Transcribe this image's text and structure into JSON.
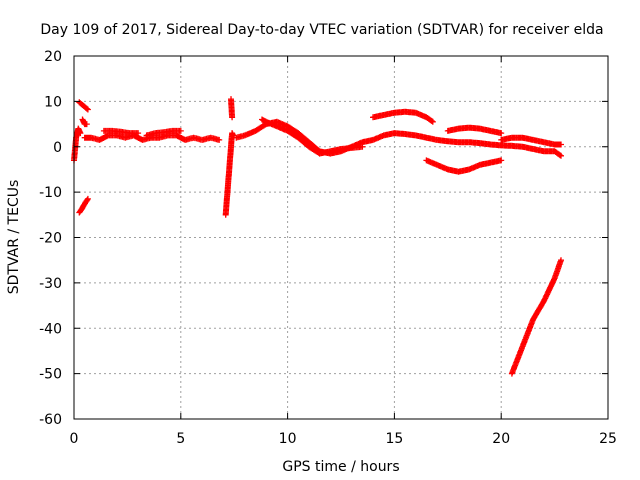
{
  "chart_data": {
    "type": "scatter",
    "title": "Day 109 of 2017, Sidereal Day-to-day VTEC variation (SDTVAR) for receiver elda",
    "xlabel": "GPS time / hours",
    "ylabel": "SDTVAR / TECUs",
    "xlim": [
      0,
      25
    ],
    "ylim": [
      -60,
      20
    ],
    "xticks": [
      0,
      5,
      10,
      15,
      20,
      25
    ],
    "yticks": [
      -60,
      -50,
      -40,
      -30,
      -20,
      -10,
      0,
      10,
      20
    ],
    "grid": true,
    "marker": "+",
    "series": [
      {
        "name": "elda",
        "color": "#ff0000",
        "segments": [
          {
            "x": [
              0.0,
              0.1,
              0.2,
              0.3
            ],
            "y": [
              -3,
              2,
              4,
              3
            ]
          },
          {
            "x": [
              0.25,
              0.35,
              0.45,
              0.55,
              0.65
            ],
            "y": [
              -14.5,
              -13.8,
              -13,
              -12.2,
              -11.5
            ]
          },
          {
            "x": [
              0.25,
              0.35,
              0.45,
              0.55,
              0.65
            ],
            "y": [
              9.8,
              9.4,
              9,
              8.6,
              8.2
            ]
          },
          {
            "x": [
              0.4,
              0.5,
              0.6
            ],
            "y": [
              6,
              5,
              5
            ]
          },
          {
            "x": [
              0.5,
              0.8,
              1.2,
              1.6,
              2.0,
              2.4,
              2.8,
              3.2,
              3.6,
              4.0,
              4.4,
              4.8,
              5.2,
              5.6,
              6.0,
              6.4,
              6.8
            ],
            "y": [
              2,
              2,
              1.5,
              2.5,
              2.5,
              2,
              2.5,
              1.5,
              2,
              2,
              2.5,
              2.5,
              1.5,
              2,
              1.5,
              2,
              1.5
            ]
          },
          {
            "x": [
              1.4,
              1.8,
              2.2,
              2.6,
              3.0
            ],
            "y": [
              3.5,
              3.5,
              3.3,
              3,
              3
            ]
          },
          {
            "x": [
              3.4,
              3.8,
              4.2,
              4.6,
              5.0
            ],
            "y": [
              2.5,
              3,
              3.2,
              3.5,
              3.5
            ]
          },
          {
            "x": [
              7.1,
              7.15,
              7.2,
              7.25,
              7.3,
              7.35,
              7.4,
              7.45
            ],
            "y": [
              -15,
              -12,
              -9,
              -6,
              -3,
              0,
              3,
              2.5
            ]
          },
          {
            "x": [
              7.35,
              7.4
            ],
            "y": [
              10.5,
              6.5
            ]
          },
          {
            "x": [
              7.6,
              8.0,
              8.5,
              9.0,
              9.5,
              10.0,
              10.5,
              11.0,
              11.5,
              12.0,
              12.5,
              13.0,
              13.5,
              14.0,
              14.5,
              15.0,
              15.5,
              16.0,
              16.5,
              17.0,
              17.5,
              18.0,
              18.5,
              19.0,
              19.5,
              20.0,
              20.5,
              21.0,
              21.5,
              22.0,
              22.5,
              22.8
            ],
            "y": [
              2,
              2.5,
              3.5,
              5,
              5.5,
              4.5,
              3,
              1,
              -1,
              -1.5,
              -1,
              0,
              1,
              1.5,
              2.5,
              3,
              2.8,
              2.5,
              2,
              1.5,
              1.2,
              1,
              1,
              0.8,
              0.5,
              0.3,
              0.2,
              0,
              -0.5,
              -1,
              -1,
              -2
            ]
          },
          {
            "x": [
              13.5,
              12.5,
              12.0,
              11.5,
              11.0,
              10.5,
              10.0,
              9.5,
              9.0,
              8.8
            ],
            "y": [
              0,
              -0.5,
              -1,
              -1.5,
              0,
              2,
              3.5,
              4.5,
              5.5,
              6
            ]
          },
          {
            "x": [
              14.0,
              14.5,
              15.0,
              15.5,
              16.0,
              16.5,
              16.8
            ],
            "y": [
              6.5,
              7,
              7.5,
              7.7,
              7.5,
              6.5,
              5.5
            ]
          },
          {
            "x": [
              16.5,
              17.0,
              17.5,
              18.0,
              18.5,
              19.0,
              19.5,
              20.0
            ],
            "y": [
              -3,
              -4,
              -5,
              -5.5,
              -5,
              -4,
              -3.5,
              -3
            ]
          },
          {
            "x": [
              17.5,
              18.0,
              18.5,
              19.0,
              19.5,
              20.0
            ],
            "y": [
              3.5,
              4,
              4.2,
              4,
              3.5,
              3
            ]
          },
          {
            "x": [
              20.0,
              20.5,
              21.0,
              21.5,
              22.0,
              22.5,
              22.8
            ],
            "y": [
              1.5,
              2,
              2,
              1.5,
              1,
              0.5,
              0.5
            ]
          },
          {
            "x": [
              20.5,
              21.0,
              21.5,
              22.0,
              22.5,
              22.8
            ],
            "y": [
              -50,
              -44,
              -38,
              -34,
              -29,
              -25
            ]
          }
        ]
      }
    ]
  }
}
